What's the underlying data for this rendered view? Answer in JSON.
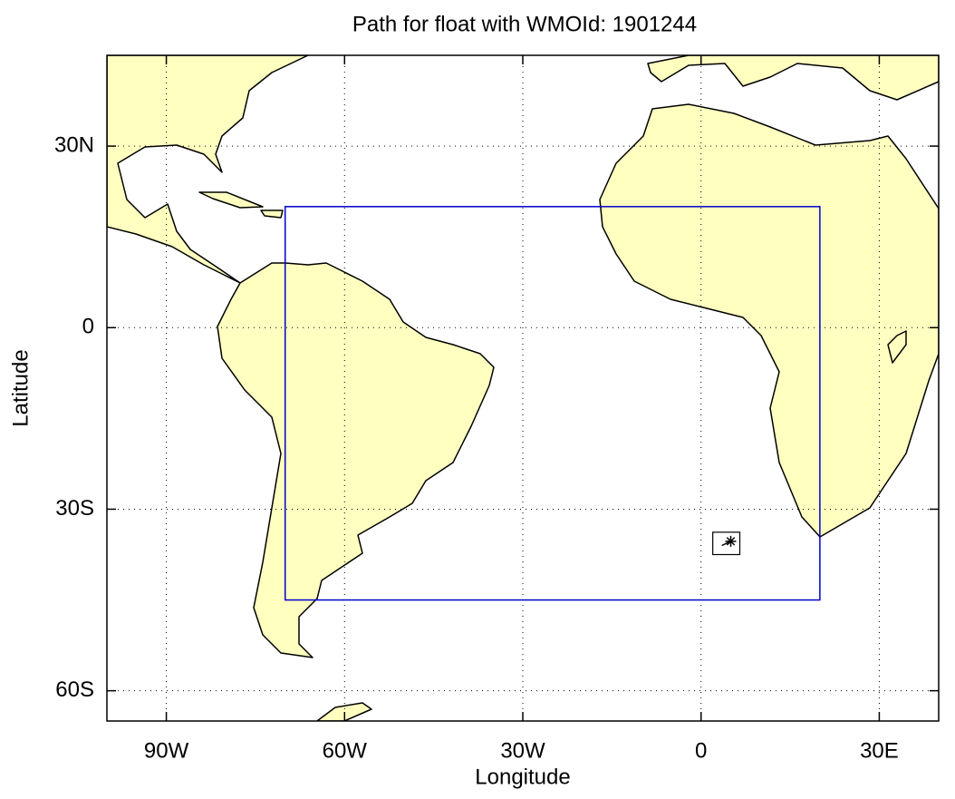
{
  "chart_data": {
    "type": "map",
    "title": "Path for float with WMOId: 1901244",
    "xlabel": "Longitude",
    "ylabel": "Latitude",
    "xlim": [
      -100,
      40
    ],
    "ylim": [
      -65,
      45
    ],
    "xticks": [
      {
        "value": -90,
        "label": "90W"
      },
      {
        "value": -60,
        "label": "60W"
      },
      {
        "value": -30,
        "label": "30W"
      },
      0,
      {
        "value": 30,
        "label": "30E"
      }
    ],
    "yticks": [
      {
        "value": -60,
        "label": "60S"
      },
      {
        "value": -30,
        "label": "30S"
      },
      0,
      {
        "value": 30,
        "label": "30N"
      }
    ],
    "grid": true,
    "region": {
      "x": [
        -70,
        20
      ],
      "y": [
        -45,
        20
      ],
      "color": "#0000cc"
    },
    "series": [
      {
        "x": [
          3.5,
          5.0
        ],
        "y": [
          -36.0,
          -35.3
        ],
        "color": "#000000"
      }
    ]
  }
}
